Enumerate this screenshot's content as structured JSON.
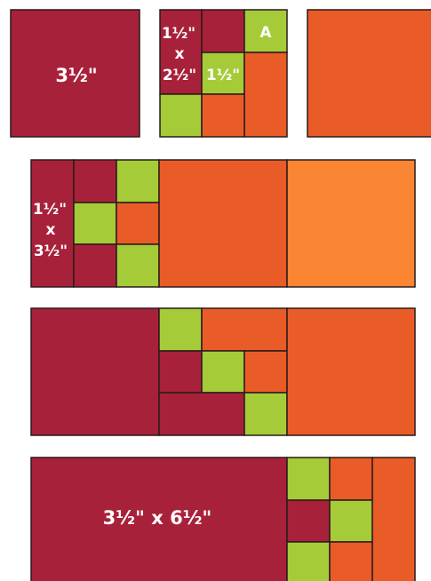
{
  "colors": {
    "crimson": "#A8213A",
    "lime": "#A5CB38",
    "orange": "#EA5C27",
    "light_orange": "#FA8533",
    "outline": "#2A1A1A"
  },
  "labels": {
    "square_size": "3½\"",
    "strip_w": "1½\"",
    "strip_x": "x",
    "strip_h": "2½\"",
    "small_square": "1½\"",
    "unit_a": "A",
    "side_w": "1½\"",
    "side_x": "x",
    "side_h": "3½\"",
    "rect_size": "3½\" x 6½\""
  }
}
